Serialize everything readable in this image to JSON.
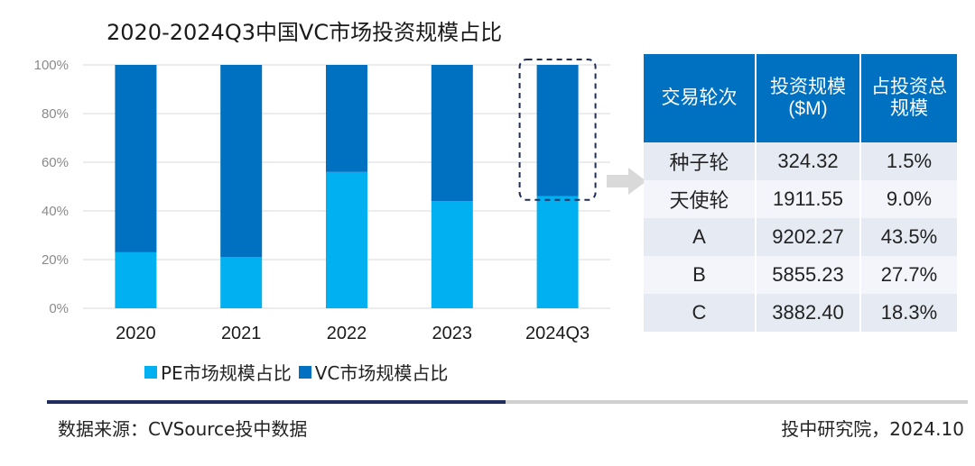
{
  "chart_data": {
    "type": "bar",
    "stacked": true,
    "title": "2020-2024Q3中国VC市场投资规模占比",
    "categories": [
      "2020",
      "2021",
      "2022",
      "2023",
      "2024Q3"
    ],
    "series": [
      {
        "name": "PE市场规模占比",
        "values": [
          23,
          21,
          56,
          44,
          46
        ],
        "color": "#00b0f0"
      },
      {
        "name": "VC市场规模占比",
        "values": [
          77,
          79,
          44,
          56,
          54
        ],
        "color": "#0070c0"
      }
    ],
    "yticks": [
      "0%",
      "20%",
      "40%",
      "60%",
      "80%",
      "100%"
    ],
    "ylim": [
      0,
      100
    ],
    "highlight_category": "2024Q3",
    "legend": "bottom"
  },
  "table": {
    "headers": [
      "交易轮次",
      "投资规模($M)",
      "占投资总规模"
    ],
    "rows": [
      [
        "种子轮",
        "324.32",
        "1.5%"
      ],
      [
        "天使轮",
        "1911.55",
        "9.0%"
      ],
      [
        "A",
        "9202.27",
        "43.5%"
      ],
      [
        "B",
        "5855.23",
        "27.7%"
      ],
      [
        "C",
        "3882.40",
        "18.3%"
      ]
    ],
    "header_color": "#0070c0"
  },
  "footer": {
    "source": "数据来源：CVSource投中数据",
    "credit": "投中研究院，2024.10"
  }
}
